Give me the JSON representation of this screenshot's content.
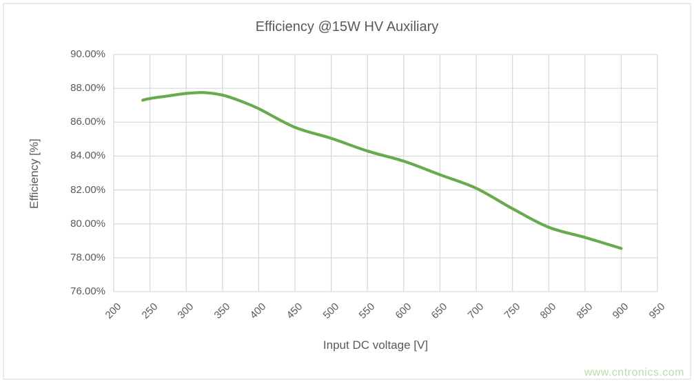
{
  "figure": {
    "title": "Efficiency @15W HV Auxiliary",
    "watermark": "www.cntronics.com"
  },
  "colors": {
    "line": "#68aa4e",
    "grid": "#d9d9d9",
    "text": "#595959",
    "watermark": "#b5dfa9",
    "frame": "#ebebeb",
    "background": "#ffffff"
  },
  "chart_data": {
    "type": "line",
    "title": "Efficiency @15W HV Auxiliary",
    "xlabel": "Input DC voltage [V]",
    "ylabel": "Efficiency [%]",
    "xlim": [
      200,
      950
    ],
    "ylim": [
      76,
      90
    ],
    "x_ticks": [
      200,
      250,
      300,
      350,
      400,
      450,
      500,
      550,
      600,
      650,
      700,
      750,
      800,
      850,
      900,
      950
    ],
    "y_ticks": [
      90,
      88,
      86,
      84,
      82,
      80,
      78,
      76
    ],
    "y_tick_labels": [
      "90.00%",
      "88.00%",
      "86.00%",
      "84.00%",
      "82.00%",
      "80.00%",
      "78.00%",
      "76.00%"
    ],
    "grid": true,
    "legend": false,
    "series": [
      {
        "name": "Efficiency @15W",
        "color": "#68aa4e",
        "x": [
          240,
          250,
          275,
          300,
          325,
          350,
          375,
          400,
          450,
          500,
          550,
          600,
          650,
          700,
          750,
          800,
          850,
          900
        ],
        "y": [
          87.3,
          87.4,
          87.55,
          87.7,
          87.75,
          87.6,
          87.25,
          86.8,
          85.7,
          85.05,
          84.3,
          83.7,
          82.9,
          82.1,
          80.9,
          79.8,
          79.2,
          78.55
        ]
      }
    ]
  }
}
